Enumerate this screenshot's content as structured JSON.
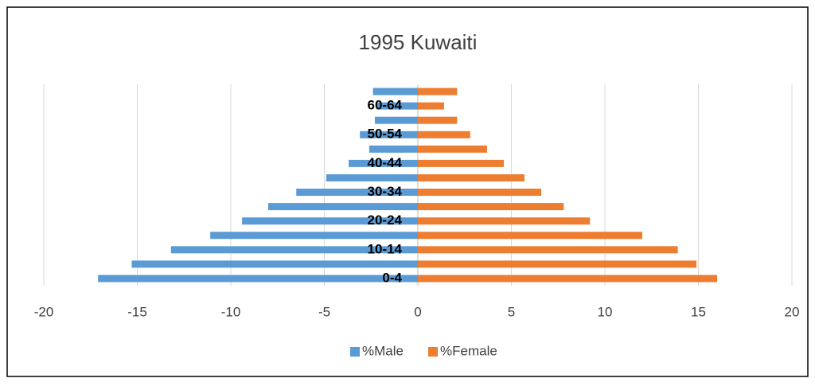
{
  "chart_data": {
    "type": "bar",
    "orientation": "horizontal",
    "title": "1995 Kuwaiti",
    "categories": [
      "0-4",
      null,
      "10-14",
      null,
      "20-24",
      null,
      "30-34",
      null,
      "40-44",
      null,
      "50-54",
      null,
      "60-64",
      null
    ],
    "series": [
      {
        "name": "%Male",
        "color": "#5b9bd5",
        "values": [
          -17.1,
          -15.3,
          -13.2,
          -11.1,
          -9.4,
          -8.0,
          -6.5,
          -4.9,
          -3.7,
          -2.6,
          -3.1,
          -2.3,
          -2.2,
          -2.4
        ]
      },
      {
        "name": "%Female",
        "color": "#ed7d31",
        "values": [
          16.0,
          14.9,
          13.9,
          12.0,
          9.2,
          7.8,
          6.6,
          5.7,
          4.6,
          3.7,
          2.8,
          2.1,
          1.4,
          2.1
        ]
      }
    ],
    "xlim": [
      -20,
      20
    ],
    "xticks": [
      -20,
      -15,
      -10,
      -5,
      0,
      5,
      10,
      15,
      20
    ],
    "grid": true,
    "legend": "bottom"
  }
}
